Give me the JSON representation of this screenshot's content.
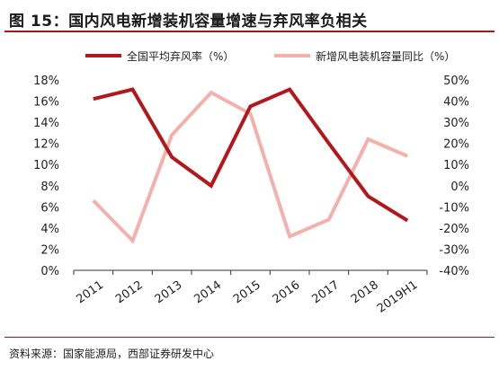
{
  "title": "图 15：国内风电新增装机容量增速与弃风率负相关",
  "source": "资料来源：国家能源局，西部证券研发中心",
  "chart_data": {
    "type": "line",
    "categories": [
      "2011",
      "2012",
      "2013",
      "2014",
      "2015",
      "2016",
      "2017",
      "2018",
      "2019H1"
    ],
    "series": [
      {
        "name": "全国平均弃风率（%）",
        "axis": "left",
        "color": "#b3161b",
        "values": [
          16.2,
          17.1,
          10.7,
          8.0,
          15.5,
          17.1,
          12.0,
          7.0,
          4.7
        ]
      },
      {
        "name": "新增风电装机容量同比（%）",
        "axis": "right",
        "color": "#f2b1ad",
        "values": [
          -7,
          -26,
          24,
          44,
          34,
          -24,
          -16,
          22,
          14
        ]
      }
    ],
    "left_axis": {
      "ylim": [
        0,
        18
      ],
      "ticks": [
        "0%",
        "2%",
        "4%",
        "6%",
        "8%",
        "10%",
        "12%",
        "14%",
        "16%",
        "18%"
      ]
    },
    "right_axis": {
      "ylim": [
        -40,
        50
      ],
      "ticks": [
        "-40%",
        "-30%",
        "-20%",
        "-10%",
        "0%",
        "10%",
        "20%",
        "30%",
        "40%",
        "50%"
      ]
    },
    "legend_position": "top"
  }
}
